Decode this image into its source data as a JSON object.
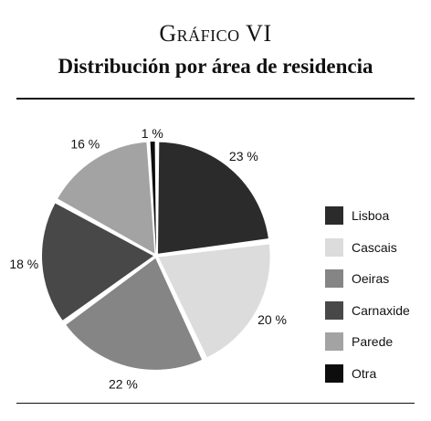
{
  "header": {
    "kicker": "Gráfico VI",
    "title": "Distribución por área de residencia"
  },
  "chart_data": {
    "type": "pie",
    "categories": [
      "Lisboa",
      "Cascais",
      "Oeiras",
      "Carnaxide",
      "Parede",
      "Otra"
    ],
    "values": [
      23,
      20,
      22,
      18,
      16,
      1
    ],
    "labels": [
      "23 %",
      "20 %",
      "22 %",
      "18 %",
      "16 %",
      "1 %"
    ],
    "colors": [
      "#2b2b2b",
      "#dcdcdc",
      "#858585",
      "#484848",
      "#a3a3a3",
      "#0d0d0d"
    ],
    "legend_position": "right",
    "start_angle": "top, clockwise"
  }
}
